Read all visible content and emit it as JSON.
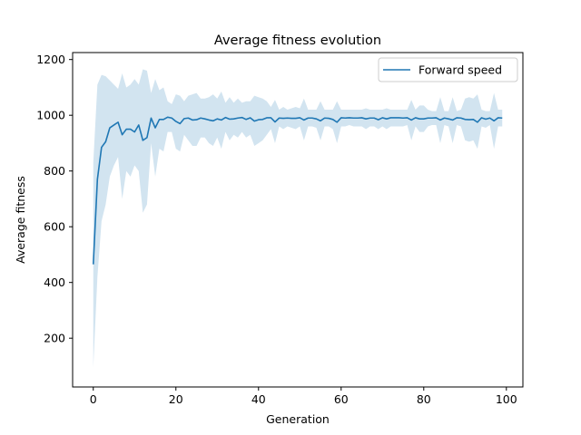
{
  "chart_data": {
    "type": "line",
    "title": "Average fitness evolution",
    "xlabel": "Generation",
    "ylabel": "Average fitness",
    "xlim": [
      -5,
      104
    ],
    "ylim": [
      25,
      1225
    ],
    "xticks": [
      0,
      20,
      40,
      60,
      80,
      100
    ],
    "yticks": [
      200,
      400,
      600,
      800,
      1000,
      1200
    ],
    "grid": false,
    "legend_position": "top-right",
    "series": [
      {
        "name": "Forward speed",
        "color": "#1f77b4",
        "band_color": "#1f77b4",
        "band_opacity": 0.2,
        "x": [
          0,
          1,
          2,
          3,
          4,
          5,
          6,
          7,
          8,
          9,
          10,
          11,
          12,
          13,
          14,
          15,
          16,
          17,
          18,
          19,
          20,
          21,
          22,
          23,
          24,
          25,
          26,
          27,
          28,
          29,
          30,
          31,
          32,
          33,
          34,
          35,
          36,
          37,
          38,
          39,
          40,
          41,
          42,
          43,
          44,
          45,
          46,
          47,
          48,
          49,
          50,
          51,
          52,
          53,
          54,
          55,
          56,
          57,
          58,
          59,
          60,
          61,
          62,
          63,
          64,
          65,
          66,
          67,
          68,
          69,
          70,
          71,
          72,
          73,
          74,
          75,
          76,
          77,
          78,
          79,
          80,
          81,
          82,
          83,
          84,
          85,
          86,
          87,
          88,
          89,
          90,
          91,
          92,
          93,
          94,
          95,
          96,
          97,
          98,
          99
        ],
        "mean": [
          465,
          770,
          885,
          905,
          955,
          965,
          975,
          930,
          950,
          950,
          940,
          965,
          910,
          920,
          990,
          955,
          985,
          985,
          993,
          990,
          978,
          970,
          988,
          990,
          983,
          984,
          990,
          987,
          983,
          980,
          987,
          983,
          992,
          986,
          987,
          990,
          992,
          985,
          991,
          979,
          984,
          985,
          991,
          991,
          976,
          990,
          989,
          990,
          989,
          989,
          991,
          983,
          990,
          990,
          987,
          980,
          990,
          989,
          985,
          975,
          991,
          990,
          991,
          990,
          990,
          991,
          987,
          990,
          990,
          984,
          991,
          987,
          991,
          991,
          991,
          990,
          991,
          983,
          991,
          987,
          987,
          990,
          990,
          991,
          983,
          990,
          987,
          983,
          991,
          990,
          985,
          984,
          985,
          975,
          991,
          986,
          990,
          980,
          991,
          990
        ],
        "lower": [
          95,
          420,
          620,
          680,
          780,
          820,
          850,
          700,
          800,
          780,
          820,
          800,
          650,
          680,
          900,
          780,
          880,
          870,
          940,
          940,
          880,
          870,
          930,
          910,
          890,
          890,
          920,
          920,
          900,
          890,
          920,
          880,
          940,
          910,
          930,
          920,
          940,
          920,
          930,
          890,
          900,
          910,
          930,
          950,
          900,
          960,
          950,
          960,
          955,
          950,
          960,
          910,
          960,
          960,
          955,
          910,
          960,
          960,
          950,
          900,
          960,
          960,
          965,
          960,
          960,
          960,
          950,
          960,
          960,
          950,
          960,
          950,
          960,
          960,
          960,
          960,
          965,
          910,
          960,
          940,
          940,
          960,
          965,
          965,
          900,
          965,
          960,
          900,
          965,
          960,
          910,
          905,
          910,
          880,
          960,
          955,
          965,
          880,
          960,
          960
        ],
        "upper": [
          830,
          1110,
          1145,
          1140,
          1125,
          1110,
          1095,
          1150,
          1100,
          1110,
          1130,
          1110,
          1165,
          1160,
          1080,
          1130,
          1090,
          1100,
          1050,
          1040,
          1075,
          1070,
          1050,
          1070,
          1075,
          1080,
          1060,
          1060,
          1065,
          1075,
          1060,
          1085,
          1045,
          1065,
          1045,
          1060,
          1045,
          1050,
          1050,
          1070,
          1065,
          1060,
          1050,
          1030,
          1055,
          1020,
          1030,
          1020,
          1025,
          1030,
          1025,
          1060,
          1020,
          1020,
          1020,
          1050,
          1020,
          1020,
          1020,
          1050,
          1020,
          1020,
          1020,
          1020,
          1020,
          1020,
          1025,
          1020,
          1020,
          1020,
          1020,
          1025,
          1020,
          1020,
          1020,
          1020,
          1020,
          1055,
          1020,
          1035,
          1035,
          1020,
          1015,
          1015,
          1065,
          1015,
          1015,
          1065,
          1015,
          1020,
          1060,
          1065,
          1060,
          1075,
          1020,
          1015,
          1015,
          1080,
          1020,
          1020
        ]
      }
    ]
  }
}
